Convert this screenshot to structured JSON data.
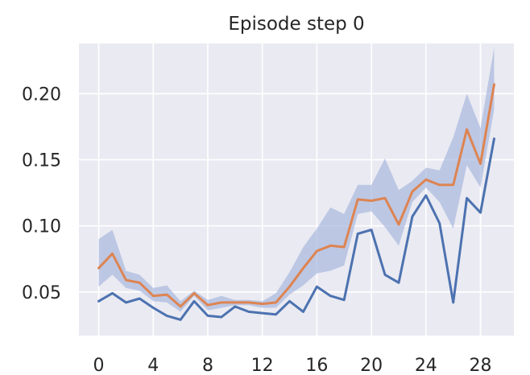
{
  "chart_data": {
    "type": "line",
    "title": "Episode step 0",
    "xlabel": "",
    "ylabel": "",
    "xlim": [
      -1.45,
      30.45
    ],
    "ylim": [
      0.017,
      0.238
    ],
    "xticks": [
      0,
      4,
      8,
      12,
      16,
      20,
      24,
      28
    ],
    "xtick_labels": [
      "0",
      "4",
      "8",
      "12",
      "16",
      "20",
      "24",
      "28"
    ],
    "yticks": [
      0.05,
      0.1,
      0.15,
      0.2
    ],
    "ytick_labels": [
      "0.05",
      "0.10",
      "0.15",
      "0.20"
    ],
    "grid": true,
    "colors": {
      "background": "#eaeaf2",
      "grid": "#ffffff",
      "band": "#a3b4db",
      "series_blue": "#4c72b0",
      "series_orange": "#dd8452"
    },
    "x": [
      0,
      1,
      2,
      3,
      4,
      5,
      6,
      7,
      8,
      9,
      10,
      11,
      12,
      13,
      14,
      15,
      16,
      17,
      18,
      19,
      20,
      21,
      22,
      23,
      24,
      25,
      26,
      27,
      28,
      29
    ],
    "series": [
      {
        "color": "#4c72b0",
        "values": [
          0.043,
          0.049,
          0.042,
          0.045,
          0.038,
          0.032,
          0.029,
          0.043,
          0.032,
          0.031,
          0.039,
          0.035,
          0.034,
          0.033,
          0.043,
          0.035,
          0.054,
          0.047,
          0.044,
          0.094,
          0.097,
          0.063,
          0.057,
          0.107,
          0.123,
          0.102,
          0.042,
          0.121,
          0.11,
          0.166
        ]
      },
      {
        "color": "#dd8452",
        "values": [
          0.068,
          0.079,
          0.059,
          0.057,
          0.047,
          0.048,
          0.039,
          0.049,
          0.04,
          0.042,
          0.042,
          0.042,
          0.041,
          0.042,
          0.054,
          0.068,
          0.081,
          0.085,
          0.084,
          0.12,
          0.119,
          0.121,
          0.101,
          0.126,
          0.135,
          0.131,
          0.131,
          0.173,
          0.147,
          0.207
        ]
      }
    ],
    "band": {
      "color": "#a3b4db",
      "lower": [
        0.054,
        0.063,
        0.053,
        0.051,
        0.043,
        0.042,
        0.035,
        0.047,
        0.036,
        0.038,
        0.04,
        0.04,
        0.038,
        0.038,
        0.048,
        0.055,
        0.064,
        0.066,
        0.07,
        0.109,
        0.111,
        0.099,
        0.085,
        0.118,
        0.129,
        0.118,
        0.098,
        0.146,
        0.129,
        0.188
      ],
      "upper": [
        0.09,
        0.097,
        0.066,
        0.063,
        0.053,
        0.055,
        0.043,
        0.051,
        0.044,
        0.047,
        0.044,
        0.044,
        0.043,
        0.049,
        0.065,
        0.084,
        0.098,
        0.114,
        0.109,
        0.131,
        0.131,
        0.151,
        0.127,
        0.134,
        0.144,
        0.142,
        0.167,
        0.2,
        0.174,
        0.235
      ]
    }
  }
}
